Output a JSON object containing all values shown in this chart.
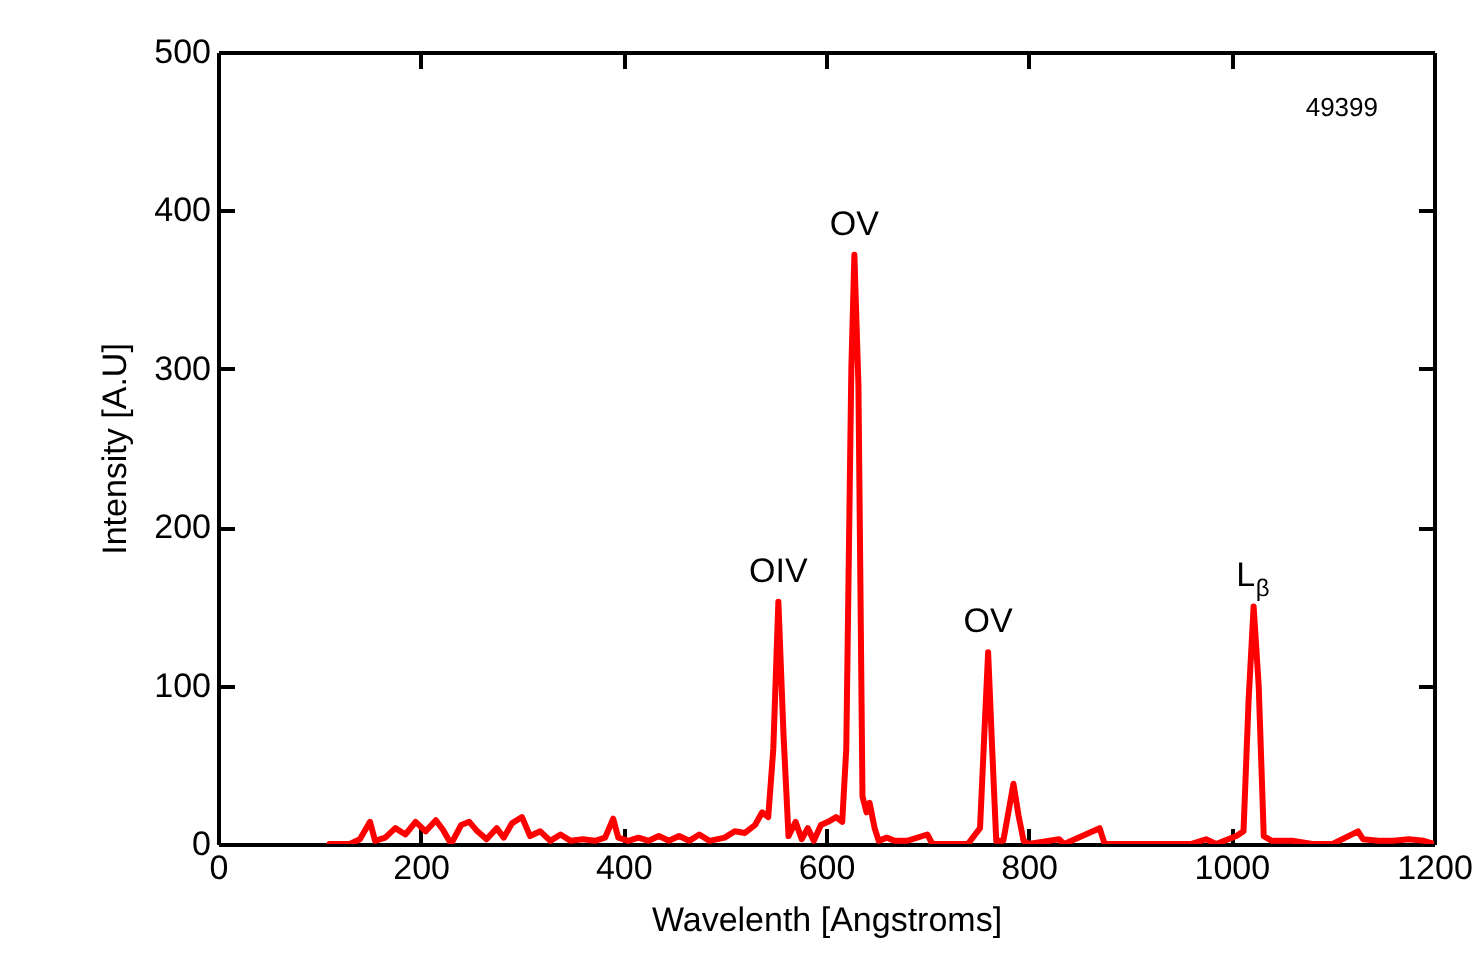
{
  "chart_data": {
    "type": "line",
    "xlabel": "Wavelenth [Angstroms]",
    "ylabel": "Intensity [A.U]",
    "xlim": [
      0,
      1200
    ],
    "xticks": [
      0,
      200,
      400,
      600,
      800,
      1000,
      1200
    ],
    "ylim": [
      0,
      500
    ],
    "yticks": [
      0,
      100,
      200,
      300,
      400,
      500
    ],
    "grid": false,
    "line_style": "solid",
    "series": [
      {
        "color": "#ff0000",
        "x": [
          110,
          130,
          140,
          150,
          155,
          165,
          175,
          185,
          195,
          205,
          215,
          222,
          230,
          240,
          248,
          256,
          265,
          275,
          282,
          290,
          300,
          308,
          318,
          328,
          338,
          348,
          360,
          372,
          382,
          390,
          395,
          405,
          415,
          425,
          435,
          445,
          455,
          465,
          475,
          485,
          500,
          510,
          520,
          530,
          537,
          543,
          548,
          553,
          558,
          563,
          570,
          576,
          582,
          588,
          595,
          602,
          610,
          616,
          620,
          625,
          628,
          632,
          636,
          640,
          643,
          648,
          652,
          660,
          668,
          680,
          700,
          705,
          740,
          752,
          757,
          760,
          764,
          768,
          775,
          780,
          785,
          790,
          795,
          800,
          830,
          835,
          870,
          875,
          900,
          920,
          960,
          975,
          985,
          1005,
          1012,
          1017,
          1022,
          1027,
          1032,
          1040,
          1060,
          1080,
          1100,
          1125,
          1130,
          1145,
          1160,
          1175,
          1190,
          1200
        ],
        "values": [
          0,
          0,
          3,
          14,
          2,
          4,
          10,
          6,
          14,
          8,
          15,
          9,
          0,
          12,
          14,
          8,
          3,
          10,
          4,
          13,
          17,
          5,
          8,
          2,
          6,
          2,
          3,
          2,
          4,
          16,
          4,
          2,
          4,
          2,
          5,
          2,
          5,
          2,
          6,
          2,
          4,
          8,
          7,
          12,
          20,
          17,
          60,
          153,
          70,
          5,
          14,
          3,
          10,
          2,
          12,
          14,
          17,
          14,
          60,
          300,
          372,
          290,
          30,
          20,
          26,
          10,
          2,
          4,
          2,
          2,
          6,
          0,
          0,
          10,
          80,
          121,
          60,
          2,
          2,
          20,
          38,
          18,
          2,
          0,
          3,
          0,
          10,
          0,
          0,
          0,
          0,
          3,
          0,
          5,
          8,
          90,
          150,
          100,
          5,
          2,
          2,
          0,
          0,
          8,
          3,
          2,
          2,
          3,
          2,
          0
        ]
      }
    ],
    "annotations": [
      "49399",
      {
        "text": "OIV",
        "x": 553,
        "y": 153
      },
      {
        "text": "OV",
        "x": 628,
        "y": 372
      },
      {
        "text": "OV",
        "x": 760,
        "y": 121
      },
      {
        "text": "L$_{β}$",
        "x": 1022,
        "y": 150
      }
    ]
  }
}
